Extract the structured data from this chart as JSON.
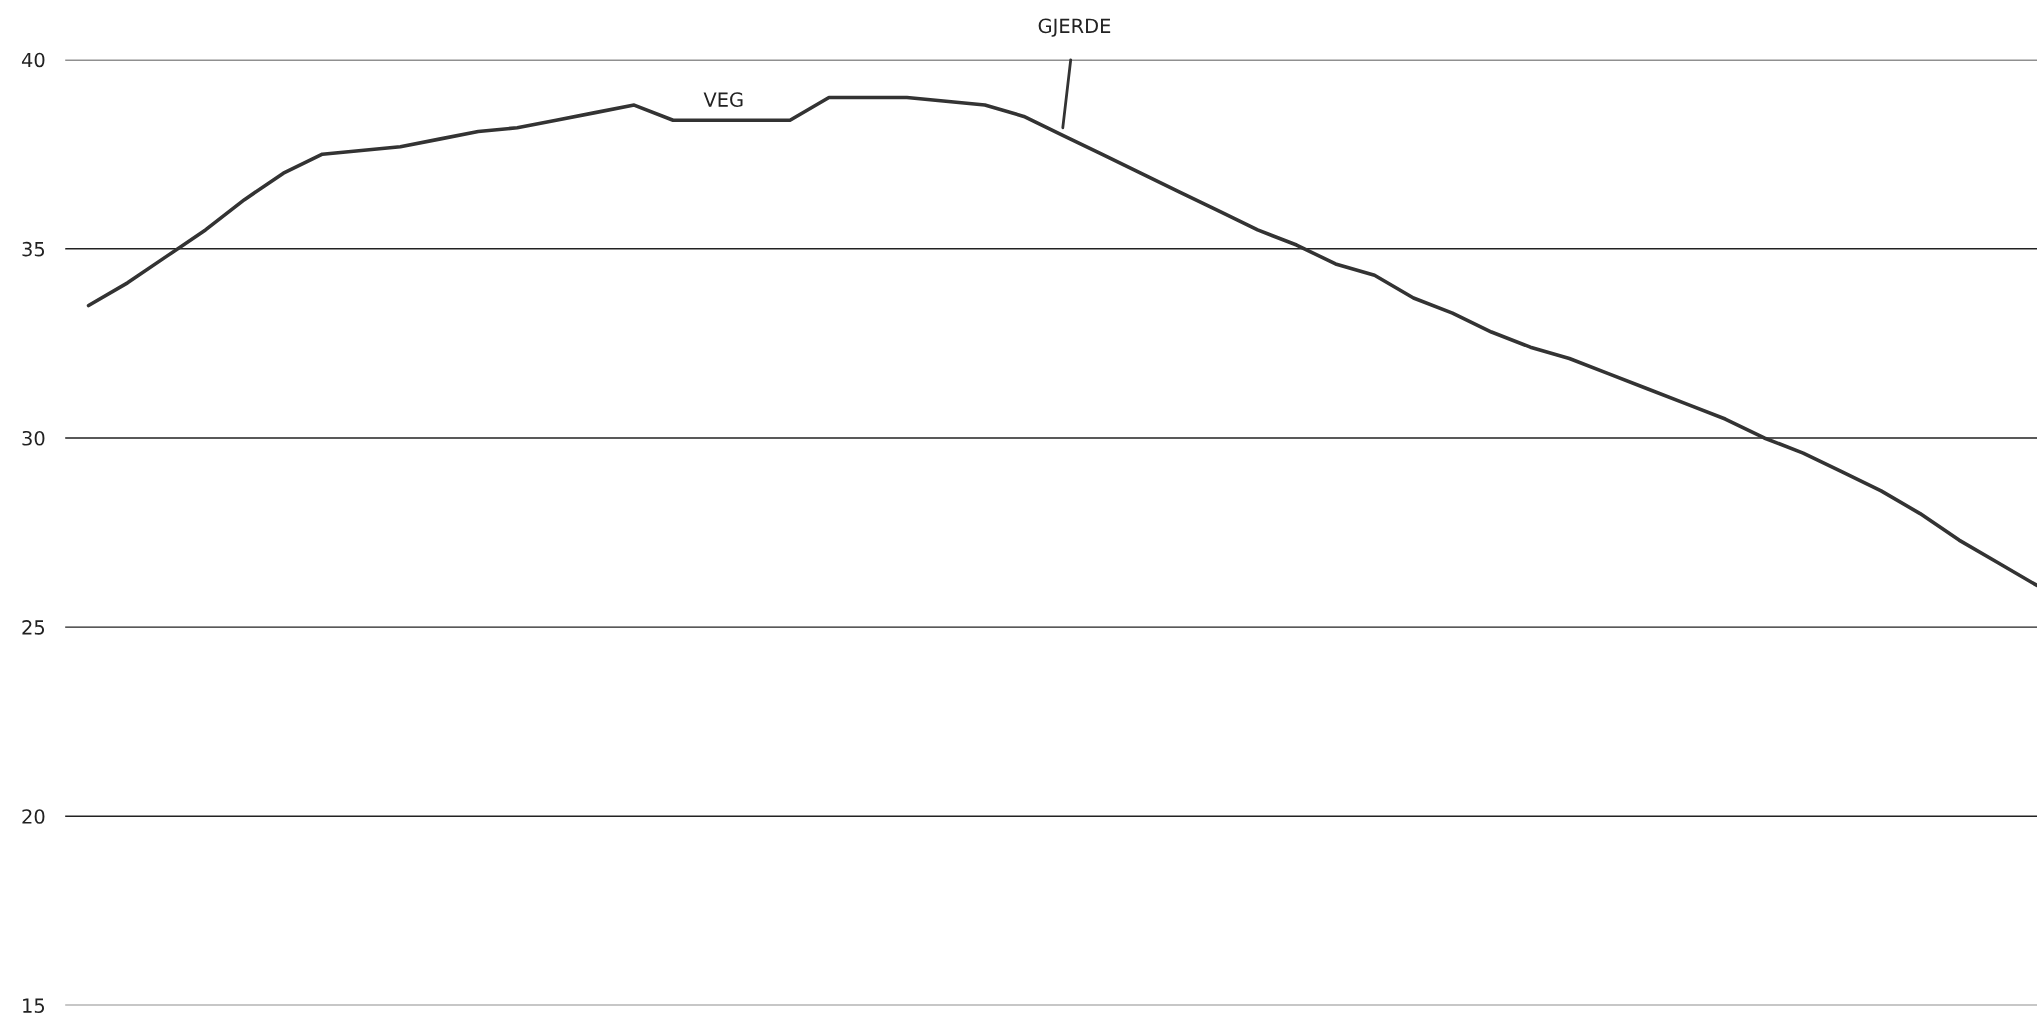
{
  "chart_data": {
    "type": "line",
    "categories": [
      null,
      null,
      null,
      null,
      null,
      null,
      null,
      null,
      null,
      null,
      null,
      null,
      null,
      null,
      null,
      null,
      null,
      null,
      null,
      null,
      null,
      null,
      null,
      null,
      null,
      null,
      null,
      null,
      null,
      null,
      null,
      null,
      null,
      null,
      null,
      null,
      null,
      null,
      null,
      null,
      null,
      null,
      null,
      null,
      null,
      null,
      null,
      null,
      null,
      null,
      null
    ],
    "series": [
      {
        "color": "#333333",
        "values": [
          33.5,
          34.1,
          34.8,
          35.5,
          36.3,
          37.0,
          37.5,
          37.6,
          37.7,
          37.9,
          38.1,
          38.2,
          38.4,
          38.6,
          38.8,
          38.4,
          38.4,
          38.4,
          38.4,
          39.0,
          39.0,
          39.0,
          38.9,
          38.8,
          38.5,
          38.0,
          37.5,
          37.0,
          36.5,
          36.0,
          35.5,
          35.1,
          34.6,
          34.3,
          33.7,
          33.3,
          32.8,
          32.4,
          32.1,
          31.7,
          31.3,
          30.9,
          30.5,
          30.0,
          29.6,
          29.1,
          28.6,
          28.0,
          27.3,
          26.7,
          26.1
        ]
      }
    ],
    "ylim": [
      15,
      40
    ],
    "yticks": [
      15,
      20,
      25,
      30,
      35,
      40
    ],
    "grid": "y",
    "annotations": [
      "VEG",
      "GJERDE"
    ]
  }
}
